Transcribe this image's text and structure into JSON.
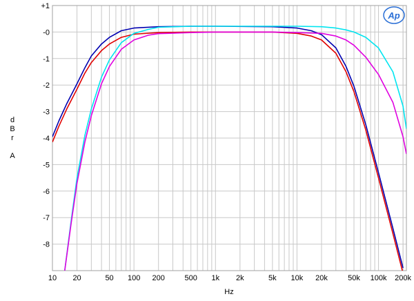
{
  "chart_data": {
    "type": "line",
    "title": "",
    "xlabel": "Hz",
    "ylabel": [
      "d",
      "B",
      "r",
      "",
      "A"
    ],
    "x_scale": "log",
    "xlim": [
      10,
      220000
    ],
    "ylim": [
      -9,
      1
    ],
    "grid": true,
    "logo_text": "Ap",
    "x_tick_labels": [
      {
        "value": 10,
        "label": "10"
      },
      {
        "value": 20,
        "label": "20"
      },
      {
        "value": 50,
        "label": "50"
      },
      {
        "value": 100,
        "label": "100"
      },
      {
        "value": 200,
        "label": "200"
      },
      {
        "value": 500,
        "label": "500"
      },
      {
        "value": 1000,
        "label": "1k"
      },
      {
        "value": 2000,
        "label": "2k"
      },
      {
        "value": 5000,
        "label": "5k"
      },
      {
        "value": 10000,
        "label": "10k"
      },
      {
        "value": 20000,
        "label": "20k"
      },
      {
        "value": 50000,
        "label": "50k"
      },
      {
        "value": 100000,
        "label": "100k"
      },
      {
        "value": 200000,
        "label": "200k"
      }
    ],
    "y_tick_labels": [
      {
        "value": 1,
        "label": "+1"
      },
      {
        "value": 0,
        "label": "-0"
      },
      {
        "value": -1,
        "label": "-1"
      },
      {
        "value": -2,
        "label": "-2"
      },
      {
        "value": -3,
        "label": "-3"
      },
      {
        "value": -4,
        "label": "-4"
      },
      {
        "value": -5,
        "label": "-5"
      },
      {
        "value": -6,
        "label": "-6"
      },
      {
        "value": -7,
        "label": "-7"
      },
      {
        "value": -8,
        "label": "-8"
      }
    ],
    "series": [
      {
        "color": "#0000b0",
        "x": [
          10,
          12,
          15,
          20,
          25,
          30,
          40,
          50,
          70,
          100,
          200,
          500,
          1000,
          5000,
          10000,
          15000,
          20000,
          30000,
          40000,
          50000,
          70000,
          100000,
          150000,
          200000
        ],
        "y": [
          -3.95,
          -3.35,
          -2.7,
          -1.95,
          -1.35,
          -0.9,
          -0.45,
          -0.2,
          0.05,
          0.15,
          0.2,
          0.22,
          0.22,
          0.2,
          0.15,
          0.05,
          -0.1,
          -0.6,
          -1.3,
          -2.05,
          -3.5,
          -5.3,
          -7.4,
          -8.9
        ]
      },
      {
        "color": "#e00000",
        "x": [
          10,
          12,
          15,
          20,
          25,
          30,
          40,
          50,
          70,
          100,
          200,
          500,
          1000,
          5000,
          10000,
          15000,
          20000,
          30000,
          40000,
          50000,
          70000,
          100000,
          150000,
          200000
        ],
        "y": [
          -4.15,
          -3.55,
          -2.9,
          -2.15,
          -1.55,
          -1.15,
          -0.7,
          -0.45,
          -0.2,
          -0.08,
          -0.02,
          0.0,
          0.0,
          0.0,
          -0.05,
          -0.15,
          -0.3,
          -0.8,
          -1.5,
          -2.25,
          -3.7,
          -5.5,
          -7.6,
          -9.1
        ]
      },
      {
        "color": "#00e5f0",
        "x": [
          14,
          17,
          20,
          25,
          30,
          40,
          50,
          70,
          100,
          150,
          200,
          500,
          1000,
          5000,
          10000,
          20000,
          30000,
          40000,
          50000,
          70000,
          100000,
          150000,
          200000,
          220000
        ],
        "y": [
          -9.1,
          -7.1,
          -5.5,
          -3.9,
          -2.9,
          -1.7,
          -1.05,
          -0.4,
          -0.05,
          0.1,
          0.18,
          0.22,
          0.22,
          0.22,
          0.22,
          0.2,
          0.15,
          0.08,
          0.0,
          -0.2,
          -0.6,
          -1.5,
          -2.8,
          -3.65
        ]
      },
      {
        "color": "#e000e0",
        "x": [
          14,
          17,
          20,
          25,
          30,
          40,
          50,
          70,
          100,
          150,
          200,
          500,
          1000,
          5000,
          10000,
          20000,
          30000,
          40000,
          50000,
          70000,
          100000,
          150000,
          200000,
          220000
        ],
        "y": [
          -9.1,
          -7.2,
          -5.7,
          -4.15,
          -3.15,
          -1.95,
          -1.3,
          -0.65,
          -0.3,
          -0.12,
          -0.06,
          -0.02,
          0.0,
          0.0,
          -0.02,
          -0.05,
          -0.15,
          -0.3,
          -0.5,
          -0.95,
          -1.6,
          -2.65,
          -3.95,
          -4.6
        ]
      }
    ]
  }
}
